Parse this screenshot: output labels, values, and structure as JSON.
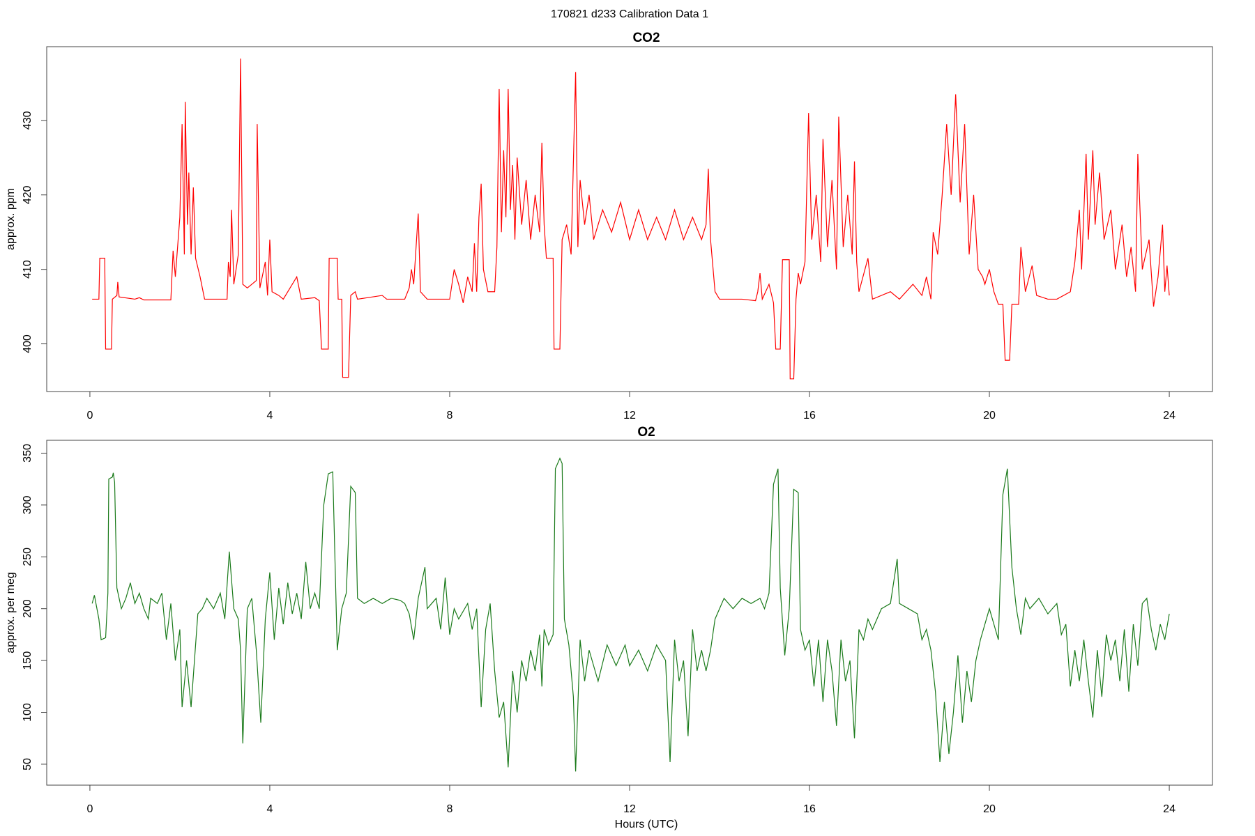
{
  "title": "170821   d233   Calibration Data 1",
  "chart_data": [
    {
      "type": "line",
      "title": "CO2",
      "y_label": "approx. ppm",
      "color": "#ff0000",
      "xlim": [
        -0.96,
        24.96
      ],
      "xticks": [
        0,
        4,
        8,
        12,
        16,
        20,
        24
      ],
      "ylim": [
        393.6,
        439.9
      ],
      "yticks": [
        400,
        410,
        420,
        430
      ],
      "x": [
        0.05,
        0.2,
        0.22,
        0.33,
        0.35,
        0.48,
        0.5,
        0.6,
        0.62,
        0.65,
        1.0,
        1.1,
        1.2,
        1.8,
        1.85,
        1.9,
        2.0,
        2.05,
        2.1,
        2.12,
        2.17,
        2.2,
        2.25,
        2.3,
        2.35,
        2.45,
        2.55,
        3.05,
        3.08,
        3.12,
        3.15,
        3.2,
        3.3,
        3.35,
        3.4,
        3.5,
        3.6,
        3.7,
        3.72,
        3.78,
        3.9,
        3.95,
        4.0,
        4.05,
        4.2,
        4.3,
        4.6,
        4.7,
        5.0,
        5.1,
        5.15,
        5.3,
        5.32,
        5.5,
        5.52,
        5.6,
        5.62,
        5.75,
        5.8,
        5.9,
        5.95,
        6.5,
        6.6,
        7.0,
        7.1,
        7.15,
        7.2,
        7.3,
        7.35,
        7.5,
        8.0,
        8.1,
        8.2,
        8.3,
        8.4,
        8.5,
        8.55,
        8.6,
        8.65,
        8.7,
        8.75,
        8.85,
        9.0,
        9.05,
        9.1,
        9.15,
        9.2,
        9.25,
        9.3,
        9.35,
        9.4,
        9.45,
        9.5,
        9.6,
        9.7,
        9.8,
        9.9,
        10.0,
        10.05,
        10.1,
        10.15,
        10.3,
        10.32,
        10.45,
        10.5,
        10.6,
        10.7,
        10.8,
        10.85,
        10.9,
        11.0,
        11.1,
        11.2,
        11.4,
        11.6,
        11.8,
        12.0,
        12.2,
        12.4,
        12.6,
        12.8,
        13.0,
        13.2,
        13.4,
        13.6,
        13.7,
        13.75,
        13.8,
        13.9,
        14.0,
        14.5,
        14.8,
        14.85,
        14.9,
        14.95,
        15.1,
        15.2,
        15.25,
        15.35,
        15.4,
        15.55,
        15.57,
        15.65,
        15.7,
        15.75,
        15.8,
        15.9,
        15.98,
        16.05,
        16.15,
        16.25,
        16.3,
        16.4,
        16.5,
        16.6,
        16.65,
        16.75,
        16.85,
        16.95,
        17.0,
        17.05,
        17.1,
        17.3,
        17.4,
        17.8,
        18.0,
        18.3,
        18.5,
        18.6,
        18.7,
        18.75,
        18.85,
        18.95,
        19.05,
        19.15,
        19.25,
        19.35,
        19.45,
        19.55,
        19.65,
        19.75,
        19.85,
        19.9,
        20.0,
        20.1,
        20.2,
        20.3,
        20.35,
        20.45,
        20.5,
        20.65,
        20.7,
        20.8,
        20.95,
        21.05,
        21.3,
        21.5,
        21.8,
        21.9,
        22.0,
        22.05,
        22.15,
        22.2,
        22.3,
        22.35,
        22.45,
        22.55,
        22.7,
        22.8,
        22.95,
        23.05,
        23.15,
        23.25,
        23.3,
        23.4,
        23.55,
        23.65,
        23.75,
        23.85,
        23.9,
        23.95,
        24.0
      ],
      "values": [
        406,
        406,
        411.5,
        411.5,
        399.3,
        399.3,
        406,
        406.5,
        408.3,
        406.3,
        406,
        406.2,
        405.9,
        405.9,
        412.5,
        409,
        417,
        429.5,
        412,
        432.5,
        416,
        423,
        412,
        421,
        411.5,
        409,
        406,
        406,
        411,
        409,
        418,
        408,
        412,
        438.3,
        408,
        407.5,
        408,
        408.5,
        429.5,
        407.5,
        411,
        406.5,
        414,
        407,
        406.5,
        406,
        409,
        406,
        406.2,
        405.8,
        399.3,
        399.3,
        411.5,
        411.5,
        406,
        406,
        395.5,
        395.5,
        406.5,
        407,
        406,
        406.5,
        406,
        406,
        407.5,
        410,
        408,
        417.5,
        407,
        406,
        406,
        410,
        408,
        405.5,
        409,
        407,
        413.5,
        407,
        417,
        421.5,
        410,
        407,
        407,
        413,
        434.2,
        415,
        426,
        417,
        434.2,
        418,
        424,
        414,
        425,
        416,
        422,
        414,
        420,
        415,
        427,
        416,
        411.5,
        411.5,
        399.3,
        399.3,
        414,
        416,
        412,
        436.5,
        413,
        422,
        416,
        420,
        414,
        418,
        415,
        419,
        414,
        418,
        414,
        417,
        414,
        418,
        414,
        417,
        414,
        416,
        423.5,
        414,
        407,
        406,
        406,
        405.8,
        407,
        409.5,
        406,
        408,
        405.5,
        399.3,
        399.3,
        411.3,
        411.3,
        395.3,
        395.3,
        406,
        409.5,
        408,
        411,
        431,
        414,
        420,
        411,
        427.5,
        413,
        422,
        410,
        430.5,
        413,
        420,
        412,
        424.5,
        411,
        407,
        411.5,
        406,
        407,
        406,
        408,
        406.5,
        409,
        406,
        415,
        412,
        420,
        429.5,
        420,
        433.5,
        419,
        429.5,
        412,
        420,
        410,
        409,
        408,
        410,
        407,
        405.3,
        405.3,
        397.8,
        397.8,
        405.3,
        405.3,
        413,
        407,
        410.5,
        406.5,
        406,
        406,
        407,
        411,
        418,
        410,
        425.5,
        414,
        426,
        416,
        423,
        414,
        418,
        410,
        416,
        409,
        413,
        407,
        425.5,
        410,
        414,
        405,
        409,
        416,
        407,
        410.5,
        406.5
      ]
    },
    {
      "type": "line",
      "title": "O2",
      "y_label": "approx. per meg",
      "x_label": "Hours (UTC)",
      "color": "#1a7a1a",
      "xlim": [
        -0.96,
        24.96
      ],
      "xticks": [
        0,
        4,
        8,
        12,
        16,
        20,
        24
      ],
      "ylim": [
        29.8,
        362.4
      ],
      "yticks": [
        50,
        100,
        150,
        200,
        250,
        300,
        350
      ],
      "x": [
        0.05,
        0.1,
        0.2,
        0.25,
        0.35,
        0.4,
        0.42,
        0.5,
        0.52,
        0.55,
        0.6,
        0.7,
        0.8,
        0.9,
        1.0,
        1.1,
        1.2,
        1.3,
        1.35,
        1.5,
        1.6,
        1.7,
        1.8,
        1.9,
        2.0,
        2.05,
        2.15,
        2.25,
        2.4,
        2.5,
        2.6,
        2.75,
        2.9,
        3.0,
        3.1,
        3.2,
        3.3,
        3.35,
        3.4,
        3.5,
        3.6,
        3.7,
        3.8,
        3.9,
        4.0,
        4.1,
        4.2,
        4.3,
        4.4,
        4.5,
        4.6,
        4.7,
        4.8,
        4.9,
        5.0,
        5.1,
        5.2,
        5.3,
        5.4,
        5.5,
        5.6,
        5.7,
        5.8,
        5.9,
        5.95,
        6.1,
        6.3,
        6.5,
        6.7,
        6.9,
        7.0,
        7.1,
        7.2,
        7.3,
        7.45,
        7.5,
        7.7,
        7.8,
        7.9,
        8.0,
        8.1,
        8.2,
        8.4,
        8.5,
        8.6,
        8.7,
        8.8,
        8.9,
        9.0,
        9.1,
        9.2,
        9.3,
        9.4,
        9.5,
        9.6,
        9.7,
        9.8,
        9.9,
        10.0,
        10.05,
        10.1,
        10.2,
        10.3,
        10.35,
        10.45,
        10.5,
        10.55,
        10.65,
        10.75,
        10.8,
        10.9,
        11.0,
        11.1,
        11.3,
        11.5,
        11.7,
        11.9,
        12.0,
        12.2,
        12.4,
        12.6,
        12.8,
        12.9,
        13.0,
        13.1,
        13.2,
        13.3,
        13.4,
        13.5,
        13.6,
        13.7,
        13.8,
        13.9,
        14.0,
        14.1,
        14.3,
        14.5,
        14.7,
        14.9,
        15.0,
        15.1,
        15.2,
        15.3,
        15.35,
        15.45,
        15.55,
        15.65,
        15.75,
        15.8,
        15.9,
        16.0,
        16.1,
        16.2,
        16.3,
        16.4,
        16.5,
        16.6,
        16.7,
        16.8,
        16.9,
        17.0,
        17.1,
        17.2,
        17.3,
        17.4,
        17.6,
        17.8,
        17.95,
        18.0,
        18.2,
        18.4,
        18.5,
        18.6,
        18.7,
        18.8,
        18.9,
        19.0,
        19.1,
        19.2,
        19.3,
        19.4,
        19.5,
        19.6,
        19.7,
        19.8,
        19.9,
        20.0,
        20.1,
        20.2,
        20.3,
        20.4,
        20.5,
        20.6,
        20.7,
        20.8,
        20.9,
        21.1,
        21.3,
        21.5,
        21.6,
        21.7,
        21.8,
        21.9,
        22.0,
        22.1,
        22.2,
        22.3,
        22.4,
        22.5,
        22.6,
        22.7,
        22.8,
        22.9,
        23.0,
        23.1,
        23.2,
        23.3,
        23.4,
        23.5,
        23.6,
        23.7,
        23.8,
        23.9,
        24.0
      ],
      "values": [
        205,
        213,
        190,
        170,
        172,
        215,
        325,
        327,
        331,
        322,
        220,
        200,
        210,
        225,
        205,
        215,
        200,
        190,
        210,
        205,
        215,
        170,
        205,
        150,
        180,
        105,
        150,
        105,
        195,
        200,
        210,
        200,
        215,
        190,
        255,
        200,
        190,
        160,
        70,
        200,
        210,
        160,
        90,
        190,
        235,
        170,
        220,
        185,
        225,
        195,
        215,
        190,
        245,
        200,
        215,
        200,
        300,
        330,
        332,
        160,
        200,
        215,
        318,
        312,
        210,
        205,
        210,
        205,
        210,
        208,
        205,
        195,
        170,
        210,
        240,
        200,
        210,
        180,
        230,
        175,
        200,
        190,
        205,
        180,
        200,
        105,
        180,
        205,
        140,
        95,
        110,
        47,
        140,
        100,
        150,
        130,
        160,
        140,
        175,
        125,
        180,
        165,
        175,
        335,
        345,
        340,
        190,
        165,
        115,
        43,
        170,
        130,
        160,
        130,
        165,
        145,
        165,
        145,
        160,
        140,
        165,
        150,
        52,
        170,
        130,
        150,
        77,
        180,
        140,
        160,
        140,
        160,
        190,
        200,
        210,
        200,
        210,
        205,
        210,
        200,
        215,
        320,
        335,
        220,
        155,
        200,
        315,
        312,
        180,
        160,
        170,
        125,
        170,
        110,
        170,
        140,
        87,
        170,
        130,
        150,
        75,
        180,
        170,
        190,
        180,
        200,
        205,
        248,
        205,
        200,
        195,
        170,
        180,
        160,
        120,
        52,
        110,
        60,
        100,
        155,
        90,
        140,
        110,
        150,
        170,
        185,
        200,
        185,
        170,
        310,
        335,
        240,
        200,
        175,
        210,
        200,
        210,
        195,
        205,
        175,
        185,
        125,
        160,
        130,
        170,
        130,
        95,
        160,
        115,
        175,
        150,
        170,
        130,
        180,
        120,
        185,
        145,
        205,
        210,
        180,
        160,
        185,
        170,
        195
      ]
    }
  ]
}
